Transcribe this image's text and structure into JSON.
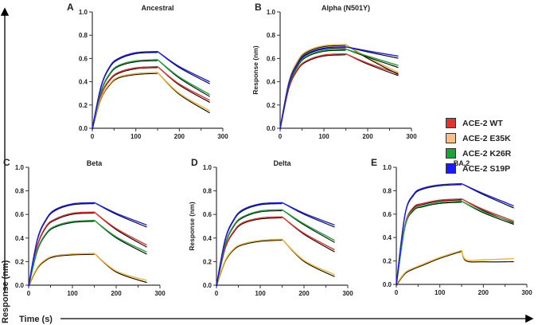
{
  "chart_data": {
    "type": "line",
    "global_ylabel": "Response (nm)",
    "global_xlabel": "Time (s)",
    "legend": {
      "placement": "right",
      "entries": [
        {
          "name": "ACE-2 WT",
          "color": "#e8312f"
        },
        {
          "name": "ACE-2 E35K",
          "color": "#f5c08a"
        },
        {
          "name": "ACE-2 K26R",
          "color": "#1aa33a"
        },
        {
          "name": "ACE-2 S19P",
          "color": "#1a1aff"
        }
      ]
    },
    "fit_color": "#000000",
    "xlim": [
      0,
      300
    ],
    "ylim": [
      0,
      1.0
    ],
    "x_ticks": [
      "0",
      "100",
      "200",
      "300"
    ],
    "y_ticks": [
      "0.0",
      "0.2",
      "0.4",
      "0.6",
      "0.8",
      "1.0"
    ],
    "default_x": [
      0,
      20,
      40,
      60,
      100,
      150,
      200,
      270
    ],
    "panels": [
      {
        "letter": "A",
        "title": "Ancestral",
        "ylabel": "",
        "series": [
          {
            "name": "ACE-2 WT",
            "color": "#e8312f",
            "y": [
              0,
              0.29,
              0.42,
              0.48,
              0.52,
              0.53,
              0.38,
              0.24
            ]
          },
          {
            "name": "ACE-2 E35K",
            "color": "#f0b429",
            "y": [
              0,
              0.26,
              0.38,
              0.44,
              0.47,
              0.48,
              0.3,
              0.15
            ]
          },
          {
            "name": "ACE-2 K26R",
            "color": "#1aa33a",
            "y": [
              0,
              0.32,
              0.47,
              0.54,
              0.58,
              0.59,
              0.44,
              0.29
            ]
          },
          {
            "name": "ACE-2 S19P",
            "color": "#1a1aff",
            "y": [
              0,
              0.36,
              0.53,
              0.6,
              0.65,
              0.66,
              0.53,
              0.4
            ]
          }
        ]
      },
      {
        "letter": "B",
        "title": "Alpha (N501Y)",
        "ylabel": "Response (nm)",
        "series": [
          {
            "name": "ACE-2 WT",
            "color": "#e8312f",
            "y": [
              0,
              0.35,
              0.51,
              0.58,
              0.63,
              0.64,
              0.56,
              0.47
            ]
          },
          {
            "name": "ACE-2 E35K",
            "color": "#f0b429",
            "y": [
              0,
              0.4,
              0.58,
              0.66,
              0.71,
              0.72,
              0.61,
              0.48
            ]
          },
          {
            "name": "ACE-2 K26R",
            "color": "#1aa33a",
            "y": [
              0,
              0.37,
              0.54,
              0.62,
              0.67,
              0.68,
              0.62,
              0.54
            ]
          },
          {
            "name": "ACE-2 S19P",
            "color": "#1a1aff",
            "y": [
              0,
              0.39,
              0.56,
              0.64,
              0.69,
              0.7,
              0.665,
              0.62
            ]
          }
        ]
      },
      {
        "letter": "C",
        "title": "Beta",
        "ylabel": "",
        "series": [
          {
            "name": "ACE-2 WT",
            "color": "#e8312f",
            "y": [
              0,
              0.34,
              0.5,
              0.56,
              0.61,
              0.62,
              0.48,
              0.34
            ]
          },
          {
            "name": "ACE-2 E35K",
            "color": "#f0b429",
            "y": [
              0,
              0.15,
              0.22,
              0.25,
              0.265,
              0.27,
              0.12,
              0.04
            ]
          },
          {
            "name": "ACE-2 K26R",
            "color": "#1aa33a",
            "y": [
              0,
              0.3,
              0.44,
              0.5,
              0.54,
              0.55,
              0.41,
              0.28
            ]
          },
          {
            "name": "ACE-2 S19P",
            "color": "#1a1aff",
            "y": [
              0,
              0.39,
              0.56,
              0.64,
              0.69,
              0.7,
              0.61,
              0.51
            ]
          }
        ]
      },
      {
        "letter": "D",
        "title": "Delta",
        "ylabel": "Response (nm)",
        "series": [
          {
            "name": "ACE-2 WT",
            "color": "#e8312f",
            "y": [
              0,
              0.32,
              0.46,
              0.53,
              0.57,
              0.58,
              0.44,
              0.3
            ]
          },
          {
            "name": "ACE-2 E35K",
            "color": "#f0b429",
            "y": [
              0,
              0.21,
              0.31,
              0.35,
              0.38,
              0.39,
              0.21,
              0.09
            ]
          },
          {
            "name": "ACE-2 K26R",
            "color": "#1aa33a",
            "y": [
              0,
              0.35,
              0.51,
              0.58,
              0.63,
              0.64,
              0.52,
              0.38
            ]
          },
          {
            "name": "ACE-2 S19P",
            "color": "#1a1aff",
            "y": [
              0,
              0.39,
              0.56,
              0.64,
              0.69,
              0.7,
              0.61,
              0.51
            ]
          }
        ]
      },
      {
        "letter": "E",
        "title": "BA.2",
        "ylabel": "",
        "series": [
          {
            "name": "ACE-2 WT",
            "color": "#e8312f",
            "y": [
              0,
              0.51,
              0.66,
              0.69,
              0.72,
              0.73,
              0.64,
              0.54
            ]
          },
          {
            "name": "ACE-2 E35K",
            "color": "#f0b429",
            "x": [
              0,
              20,
              40,
              60,
              100,
              150,
              160,
              200,
              270
            ],
            "y": [
              0,
              0.1,
              0.14,
              0.17,
              0.23,
              0.29,
              0.21,
              0.21,
              0.22
            ]
          },
          {
            "name": "ACE-2 K26R",
            "color": "#1aa33a",
            "y": [
              0,
              0.5,
              0.64,
              0.67,
              0.7,
              0.71,
              0.62,
              0.53
            ]
          },
          {
            "name": "ACE-2 S19P",
            "color": "#1a1aff",
            "y": [
              0,
              0.6,
              0.77,
              0.82,
              0.85,
              0.86,
              0.775,
              0.67
            ]
          }
        ]
      }
    ]
  }
}
